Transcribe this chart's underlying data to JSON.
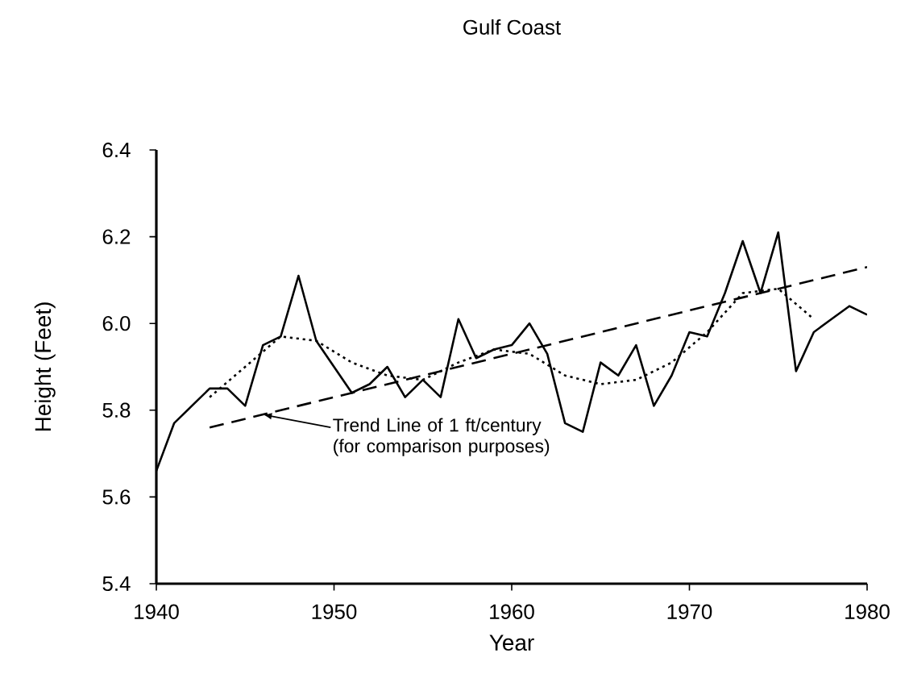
{
  "chart_data": {
    "type": "line",
    "title": "Gulf Coast",
    "xlabel": "Year",
    "ylabel": "Height (Feet)",
    "xlim": [
      1940,
      1980
    ],
    "xticks": [
      1940,
      1950,
      1960,
      1970,
      1980
    ],
    "ylim": [
      5.4,
      6.4
    ],
    "yticks": [
      {
        "value": 5.4,
        "label": "5.4"
      },
      {
        "value": 5.6,
        "label": "5.6"
      },
      {
        "value": 5.8,
        "label": "5.8"
      },
      {
        "value": 6.0,
        "label": "6.0"
      },
      {
        "value": 6.2,
        "label": "6.2"
      },
      {
        "value": 6.4,
        "label": "6.4"
      }
    ],
    "grid": false,
    "marker": "none",
    "series": [
      {
        "color": "#000000",
        "line_style": "solid",
        "x": [
          1940,
          1941,
          1942,
          1943,
          1944,
          1945,
          1946,
          1947,
          1948,
          1949,
          1950,
          1951,
          1952,
          1953,
          1954,
          1955,
          1956,
          1957,
          1958,
          1959,
          1960,
          1961,
          1962,
          1963,
          1964,
          1965,
          1966,
          1967,
          1968,
          1969,
          1970,
          1971,
          1972,
          1973,
          1974,
          1975,
          1976,
          1977,
          1978,
          1979,
          1980
        ],
        "values": [
          5.66,
          5.77,
          5.81,
          5.85,
          5.85,
          5.81,
          5.95,
          5.97,
          6.11,
          5.96,
          5.9,
          5.84,
          5.86,
          5.9,
          5.83,
          5.87,
          5.83,
          6.01,
          5.92,
          5.94,
          5.95,
          6.0,
          5.93,
          5.77,
          5.75,
          5.91,
          5.88,
          5.95,
          5.81,
          5.88,
          5.98,
          5.97,
          6.07,
          6.19,
          6.07,
          6.21,
          5.89,
          5.98,
          6.01,
          6.04,
          6.02
        ]
      },
      {
        "color": "#000000",
        "line_style": "dotted",
        "x": [
          1943,
          1945,
          1947,
          1949,
          1951,
          1953,
          1955,
          1957,
          1959,
          1961,
          1963,
          1965,
          1967,
          1969,
          1971,
          1973,
          1975,
          1977
        ],
        "values": [
          5.83,
          5.9,
          5.97,
          5.96,
          5.91,
          5.88,
          5.87,
          5.91,
          5.94,
          5.93,
          5.88,
          5.86,
          5.87,
          5.91,
          5.98,
          6.07,
          6.08,
          6.01
        ]
      },
      {
        "color": "#000000",
        "line_style": "dashed",
        "x": [
          1943,
          1980
        ],
        "values": [
          5.76,
          6.13
        ]
      }
    ],
    "annotations": [
      {
        "text": "Trend Line of 1 ft/century (for comparison purposes)",
        "x": 1946,
        "y": 5.79
      }
    ]
  }
}
